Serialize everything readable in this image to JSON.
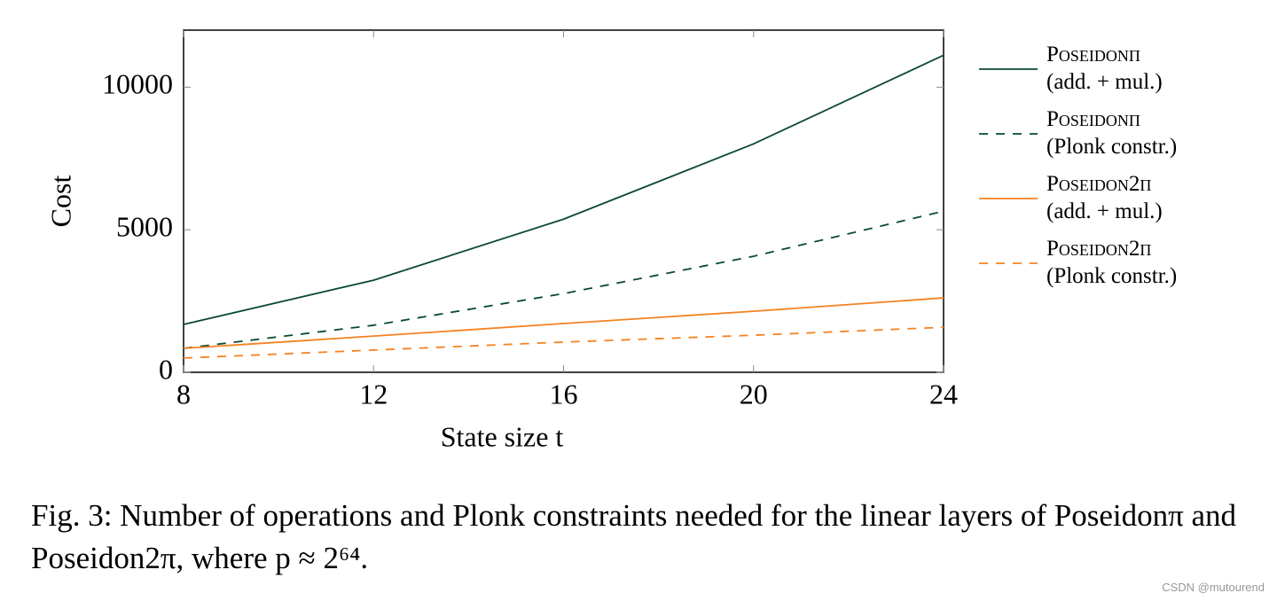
{
  "chart_data": {
    "type": "line",
    "x_label": "State size t",
    "y_label": "Cost",
    "x": [
      8,
      12,
      16,
      20,
      24
    ],
    "xlim": [
      8,
      24
    ],
    "xticks": [
      8,
      12,
      16,
      20,
      24
    ],
    "ylim": [
      0,
      12000
    ],
    "yticks": [
      0,
      5000,
      10000
    ],
    "legend": "outside-right",
    "series": [
      {
        "name": "Poseidonπ\n(add. + mul.)",
        "color": "#0b4a2f",
        "dashed": false,
        "values": [
          1680,
          3230,
          5370,
          8010,
          11120
        ]
      },
      {
        "name": "Poseidonπ\n(Plonk constr.)",
        "color": "#0b4a2f",
        "dashed": true,
        "values": [
          840,
          1650,
          2760,
          4070,
          5650
        ]
      },
      {
        "name": "Poseidon2π\n(add. + mul.)",
        "color": "#f58220",
        "dashed": false,
        "values": [
          840,
          1270,
          1710,
          2140,
          2610
        ]
      },
      {
        "name": "Poseidon2π\n(Plonk constr.)",
        "color": "#f58220",
        "dashed": true,
        "values": [
          500,
          780,
          1060,
          1300,
          1580
        ]
      }
    ],
    "caption": "Fig. 3: Number of operations and Plonk constraints needed for the linear layers of Poseidonπ and Poseidon2π, where p ≈ 2⁶⁴.",
    "watermark": "CSDN @mutourend"
  }
}
